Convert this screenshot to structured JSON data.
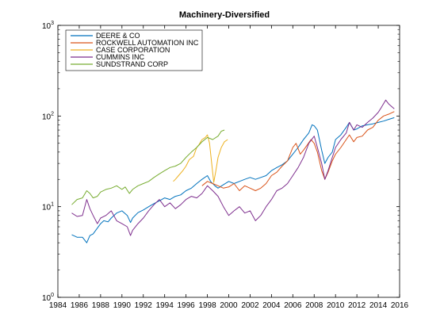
{
  "chart_data": {
    "type": "line",
    "title": "Machinery-Diversified",
    "xlabel": "",
    "ylabel": "",
    "y_scale": "log",
    "xlim": [
      1984,
      2016
    ],
    "ylim": [
      1,
      1000
    ],
    "x_ticks": [
      "1984",
      "1986",
      "1988",
      "1990",
      "1992",
      "1994",
      "1996",
      "1998",
      "2000",
      "2002",
      "2004",
      "2006",
      "2008",
      "2010",
      "2012",
      "2014",
      "2016"
    ],
    "y_ticks": [
      {
        "value": 1,
        "label": "10",
        "exp": "0"
      },
      {
        "value": 10,
        "label": "10",
        "exp": "1"
      },
      {
        "value": 100,
        "label": "10",
        "exp": "2"
      },
      {
        "value": 1000,
        "label": "10",
        "exp": "3"
      }
    ],
    "grid": false,
    "legend_position": "top-left",
    "series": [
      {
        "name": "DEERE & CO",
        "color": "#0072BD",
        "x": [
          1985.3,
          1985.8,
          1986.3,
          1986.7,
          1987.0,
          1987.3,
          1987.7,
          1988.0,
          1988.3,
          1988.7,
          1989.0,
          1989.5,
          1990.0,
          1990.5,
          1990.8,
          1991.0,
          1991.5,
          1992.0,
          1992.5,
          1993.0,
          1993.5,
          1994.0,
          1994.5,
          1995.0,
          1995.5,
          1996.0,
          1996.5,
          1997.0,
          1997.5,
          1998.0,
          1998.3,
          1998.7,
          1999.0,
          1999.5,
          2000.0,
          2000.5,
          2001.0,
          2001.5,
          2002.0,
          2002.5,
          2003.0,
          2003.5,
          2004.0,
          2004.5,
          2005.0,
          2005.5,
          2006.0,
          2006.5,
          2007.0,
          2007.5,
          2007.8,
          2008.0,
          2008.3,
          2008.7,
          2009.0,
          2009.3,
          2009.7,
          2010.0,
          2010.5,
          2011.0,
          2011.3,
          2011.7,
          2012.0,
          2012.5,
          2013.0,
          2013.5,
          2014.0,
          2014.5,
          2015.0,
          2015.5
        ],
        "values": [
          4.9,
          4.6,
          4.6,
          4.0,
          4.8,
          5.0,
          5.8,
          6.5,
          7.0,
          6.8,
          7.5,
          8.5,
          9.0,
          8.0,
          6.7,
          7.5,
          8.6,
          9.2,
          10.0,
          10.8,
          11.6,
          12.5,
          12.0,
          13.0,
          13.5,
          15.0,
          16.0,
          18.0,
          20.0,
          22.0,
          19.0,
          17.0,
          16.0,
          17.5,
          19.0,
          18.0,
          19.0,
          20.0,
          21.0,
          20.0,
          21.0,
          22.0,
          25.0,
          27.0,
          29.0,
          32.0,
          38.0,
          45.0,
          55.0,
          65.0,
          80.0,
          78.0,
          70.0,
          42.0,
          30.0,
          35.0,
          40.0,
          55.0,
          62.0,
          75.0,
          85.0,
          70.0,
          72.0,
          78.0,
          80.0,
          82.0,
          85.0,
          88.0,
          92.0,
          96.0
        ]
      },
      {
        "name": "ROCKWELL AUTOMATION INC",
        "color": "#D95319",
        "x": [
          1997.5,
          1998.0,
          1998.5,
          1999.0,
          1999.5,
          2000.0,
          2000.5,
          2001.0,
          2001.5,
          2002.0,
          2002.5,
          2003.0,
          2003.5,
          2004.0,
          2004.5,
          2005.0,
          2005.5,
          2006.0,
          2006.3,
          2006.7,
          2007.0,
          2007.3,
          2007.7,
          2008.0,
          2008.3,
          2008.7,
          2009.0,
          2009.3,
          2009.7,
          2010.0,
          2010.5,
          2011.0,
          2011.3,
          2011.7,
          2012.0,
          2012.5,
          2013.0,
          2013.5,
          2014.0,
          2014.5,
          2015.0,
          2015.5
        ],
        "values": [
          17.0,
          19.0,
          18.0,
          17.0,
          16.0,
          16.5,
          18.0,
          15.0,
          17.0,
          16.0,
          15.0,
          16.0,
          18.0,
          22.0,
          24.0,
          28.0,
          32.0,
          45.0,
          50.0,
          38.0,
          42.0,
          47.0,
          55.0,
          50.0,
          40.0,
          25.0,
          20.0,
          24.0,
          32.0,
          38.0,
          45.0,
          55.0,
          62.0,
          52.0,
          58.0,
          60.0,
          70.0,
          75.0,
          90.0,
          100.0,
          105.0,
          112.0
        ]
      },
      {
        "name": "CASE CORPORATION",
        "color": "#EDB120",
        "x": [
          1994.8,
          1995.0,
          1995.3,
          1995.7,
          1996.0,
          1996.3,
          1996.7,
          1997.0,
          1997.2,
          1997.5,
          1997.8,
          1998.0,
          1998.2,
          1998.4,
          1998.6,
          1998.8,
          1999.0,
          1999.3,
          1999.6,
          1999.9
        ],
        "values": [
          19.0,
          20.0,
          22.0,
          25.0,
          28.0,
          33.0,
          36.0,
          45.0,
          48.0,
          55.0,
          58.0,
          62.0,
          50.0,
          30.0,
          18.5,
          25.0,
          35.0,
          45.0,
          52.0,
          55.0
        ]
      },
      {
        "name": "CUMMINS INC",
        "color": "#7E2F8E",
        "x": [
          1985.3,
          1985.8,
          1986.3,
          1986.7,
          1987.0,
          1987.3,
          1987.7,
          1988.0,
          1988.5,
          1989.0,
          1989.5,
          1990.0,
          1990.5,
          1990.8,
          1991.0,
          1991.5,
          1992.0,
          1992.5,
          1993.0,
          1993.5,
          1994.0,
          1994.5,
          1995.0,
          1995.5,
          1996.0,
          1996.5,
          1997.0,
          1997.5,
          1998.0,
          1998.5,
          1999.0,
          1999.5,
          2000.0,
          2000.5,
          2001.0,
          2001.5,
          2002.0,
          2002.5,
          2003.0,
          2003.5,
          2004.0,
          2004.5,
          2005.0,
          2005.5,
          2006.0,
          2006.5,
          2007.0,
          2007.5,
          2008.0,
          2008.3,
          2008.7,
          2009.0,
          2009.3,
          2009.7,
          2010.0,
          2010.5,
          2011.0,
          2011.3,
          2011.7,
          2012.0,
          2012.5,
          2013.0,
          2013.5,
          2014.0,
          2014.3,
          2014.7,
          2015.0,
          2015.5
        ],
        "values": [
          8.5,
          7.8,
          8.0,
          12.0,
          9.5,
          8.0,
          6.5,
          7.5,
          8.0,
          9.0,
          7.0,
          6.5,
          6.0,
          4.8,
          5.5,
          6.5,
          7.5,
          9.0,
          10.5,
          12.0,
          10.0,
          11.0,
          9.5,
          10.5,
          12.0,
          13.0,
          12.5,
          14.0,
          17.0,
          15.0,
          13.0,
          10.0,
          8.0,
          9.0,
          10.0,
          8.5,
          9.0,
          7.0,
          8.0,
          10.0,
          12.0,
          15.0,
          16.0,
          18.0,
          22.0,
          27.0,
          35.0,
          50.0,
          60.0,
          45.0,
          30.0,
          20.0,
          25.0,
          35.0,
          45.0,
          55.0,
          65.0,
          85.0,
          70.0,
          80.0,
          75.0,
          85.0,
          95.0,
          110.0,
          125.0,
          150.0,
          135.0,
          120.0
        ]
      },
      {
        "name": "SUNDSTRAND CORP",
        "color": "#77AC30",
        "x": [
          1985.3,
          1985.8,
          1986.3,
          1986.7,
          1987.0,
          1987.3,
          1987.7,
          1988.0,
          1988.5,
          1989.0,
          1989.5,
          1990.0,
          1990.3,
          1990.7,
          1991.0,
          1991.5,
          1992.0,
          1992.5,
          1993.0,
          1993.5,
          1994.0,
          1994.5,
          1995.0,
          1995.5,
          1996.0,
          1996.5,
          1997.0,
          1997.5,
          1998.0,
          1998.5,
          1999.0,
          1999.3,
          1999.6
        ],
        "values": [
          10.5,
          12.0,
          12.5,
          15.0,
          14.0,
          12.5,
          13.0,
          14.5,
          15.5,
          16.0,
          17.0,
          15.5,
          16.5,
          14.0,
          15.5,
          17.0,
          18.0,
          19.0,
          21.0,
          23.0,
          25.0,
          27.0,
          28.0,
          30.0,
          35.0,
          40.0,
          45.0,
          52.0,
          58.0,
          55.0,
          60.0,
          68.0,
          70.0
        ]
      }
    ]
  }
}
